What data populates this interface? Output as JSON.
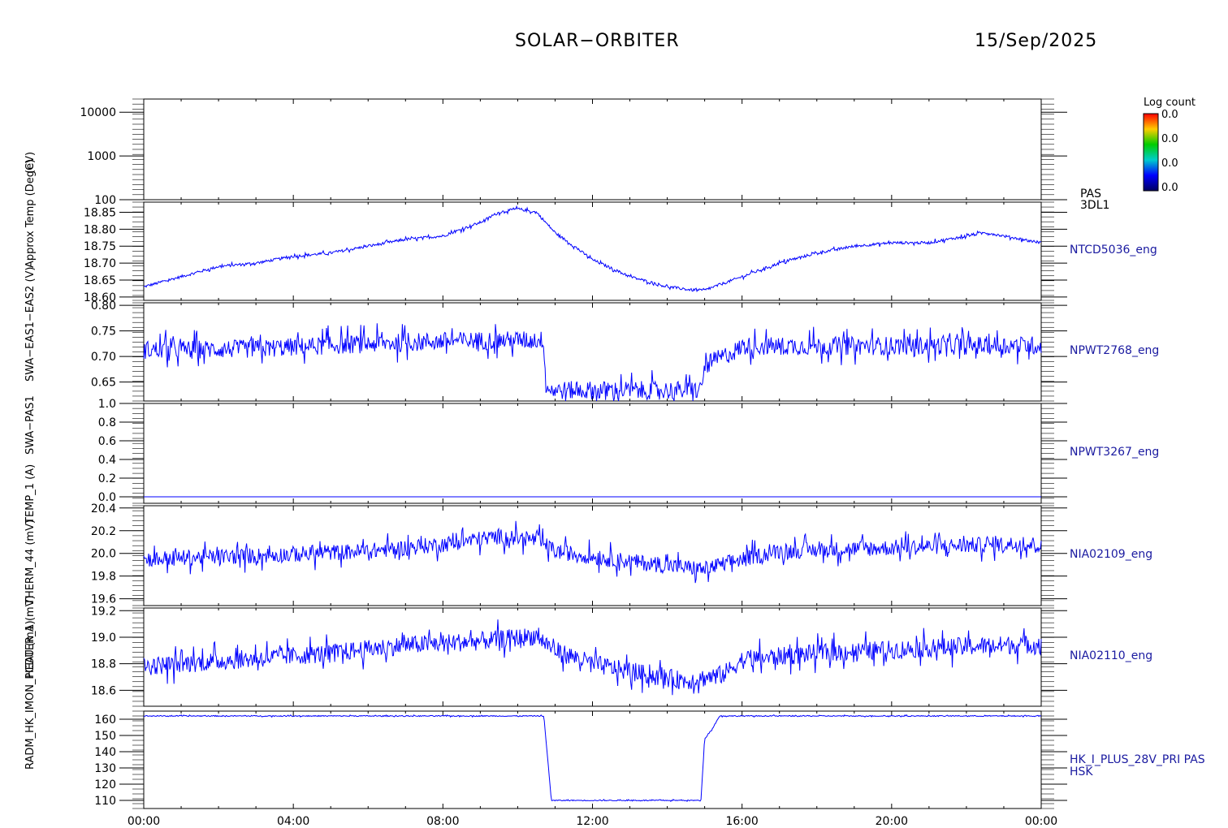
{
  "header": {
    "mission": "SOLAR−ORBITER",
    "date": "15/Sep/2025"
  },
  "colorbar": {
    "title": "Log count",
    "ticks": [
      "0.0",
      "0.0",
      "0.0",
      "0.0"
    ],
    "stops": [
      "#ff0000",
      "#ffcc00",
      "#00cc00",
      "#00cccc",
      "#0000ff",
      "#000060"
    ]
  },
  "y_axis_titles": [
    "(eV)",
    "Approx Temp (DegC)",
    "SWA−EAS1−EAS2 (V)",
    "SWA−PAS1",
    "TEMP_1 (A)",
    "THERM_44 (mV)",
    "RADM_HK_IMON_PCDU (mA)",
    "HEATER_1 (mV)"
  ],
  "series_color": "#0000ff",
  "axis_color": "#000000",
  "label_color": "#1a1aa0",
  "chart_data": [
    {
      "type": "heatmap",
      "name": "PAS 3DL1",
      "right_labels": [
        "PAS",
        "3DL1"
      ],
      "y_scale": "log",
      "ylim": [
        100,
        20000
      ],
      "y_ticks": [
        100,
        1000,
        10000
      ],
      "y_tick_labels": [
        "100",
        "1000",
        "10000"
      ],
      "x_ticks": [
        "00:00",
        "04:00",
        "08:00",
        "12:00",
        "16:00",
        "20:00",
        "00:00"
      ],
      "values": []
    },
    {
      "type": "line",
      "name": "NTCD5036_eng",
      "right_labels": [
        "NTCD5036_eng"
      ],
      "ylim": [
        18.59,
        18.88
      ],
      "y_ticks": [
        18.6,
        18.65,
        18.7,
        18.75,
        18.8,
        18.85
      ],
      "y_tick_labels": [
        "18.60",
        "18.65",
        "18.70",
        "18.75",
        "18.80",
        "18.85"
      ],
      "x_hours": [
        0,
        1,
        2,
        3,
        4,
        5,
        6,
        7,
        8,
        9,
        9.5,
        10,
        10.5,
        11,
        12,
        13,
        14,
        14.7,
        15,
        16,
        17,
        18,
        19,
        20,
        21,
        22,
        22.5,
        23,
        24
      ],
      "values": [
        18.63,
        18.66,
        18.69,
        18.7,
        18.72,
        18.73,
        18.75,
        18.77,
        18.78,
        18.82,
        18.85,
        18.86,
        18.85,
        18.79,
        18.71,
        18.66,
        18.63,
        18.62,
        18.62,
        18.66,
        18.7,
        18.73,
        18.75,
        18.76,
        18.76,
        18.78,
        18.79,
        18.78,
        18.76
      ],
      "noise": 0.004
    },
    {
      "type": "line",
      "name": "NPWT2768_eng",
      "right_labels": [
        "NPWT2768_eng"
      ],
      "ylim": [
        0.613,
        0.805
      ],
      "y_ticks": [
        0.65,
        0.7,
        0.75,
        0.8
      ],
      "y_tick_labels": [
        "0.65",
        "0.70",
        "0.75",
        "0.80"
      ],
      "x_hours": [
        0,
        3,
        5,
        8,
        10,
        10.7,
        10.75,
        11,
        14.9,
        15,
        15.2,
        15.8,
        16,
        24
      ],
      "values": [
        0.713,
        0.715,
        0.722,
        0.73,
        0.732,
        0.732,
        0.64,
        0.634,
        0.634,
        0.68,
        0.69,
        0.71,
        0.72,
        0.722
      ],
      "noise": 0.018
    },
    {
      "type": "line",
      "name": "NPWT3267_eng",
      "right_labels": [
        "NPWT3267_eng"
      ],
      "ylim": [
        -0.07,
        1.0
      ],
      "y_ticks": [
        0.0,
        0.2,
        0.4,
        0.6,
        0.8,
        1.0
      ],
      "y_tick_labels": [
        "0.0",
        "0.2",
        "0.4",
        "0.6",
        "0.8",
        "1.0"
      ],
      "x_hours": [
        0,
        24
      ],
      "values": [
        0.0,
        0.0
      ],
      "noise": 0
    },
    {
      "type": "line",
      "name": "NIA02109_eng",
      "right_labels": [
        "NIA02109_eng"
      ],
      "ylim": [
        19.54,
        20.42
      ],
      "y_ticks": [
        19.6,
        19.8,
        20.0,
        20.2,
        20.4
      ],
      "y_tick_labels": [
        "19.6",
        "19.8",
        "20.0",
        "20.2",
        "20.4"
      ],
      "x_hours": [
        0,
        3,
        6,
        8,
        9.5,
        10.5,
        11,
        12,
        13.5,
        15,
        16,
        17,
        20,
        23,
        24
      ],
      "values": [
        19.95,
        19.98,
        20.02,
        20.08,
        20.15,
        20.12,
        20.02,
        19.97,
        19.91,
        19.86,
        19.95,
        20.02,
        20.05,
        20.08,
        20.08
      ],
      "noise": 0.07
    },
    {
      "type": "line",
      "name": "NIA02110_eng",
      "right_labels": [
        "NIA02110_eng"
      ],
      "ylim": [
        18.48,
        19.22
      ],
      "y_ticks": [
        18.6,
        18.8,
        19.0,
        19.2
      ],
      "y_tick_labels": [
        "18.6",
        "18.8",
        "19.0",
        "19.2"
      ],
      "x_hours": [
        0,
        2,
        5,
        7,
        9,
        10.5,
        11,
        12,
        13,
        14.5,
        15.5,
        16,
        18,
        21,
        24
      ],
      "values": [
        18.78,
        18.82,
        18.88,
        18.94,
        18.97,
        19.01,
        18.9,
        18.8,
        18.74,
        18.67,
        18.72,
        18.83,
        18.88,
        18.92,
        18.95
      ],
      "noise": 0.07
    },
    {
      "type": "line",
      "name": "HK_I_PLUS_28V_PRI PAS HSK",
      "right_labels": [
        "HK_I_PLUS_28V_PRI PAS",
        "HSK"
      ],
      "ylim": [
        105,
        165
      ],
      "y_ticks": [
        110,
        120,
        130,
        140,
        150,
        160
      ],
      "y_tick_labels": [
        "110",
        "120",
        "130",
        "140",
        "150",
        "160"
      ],
      "x_hours": [
        0,
        10.7,
        10.9,
        14.9,
        15.0,
        15.2,
        15.4,
        24
      ],
      "values": [
        162,
        162,
        110,
        110,
        148,
        154,
        162,
        162
      ],
      "noise": 0.3
    }
  ],
  "x_axis": {
    "range_hours": [
      0,
      24
    ],
    "tick_labels": [
      "00:00",
      "04:00",
      "08:00",
      "12:00",
      "16:00",
      "20:00",
      "00:00"
    ]
  }
}
